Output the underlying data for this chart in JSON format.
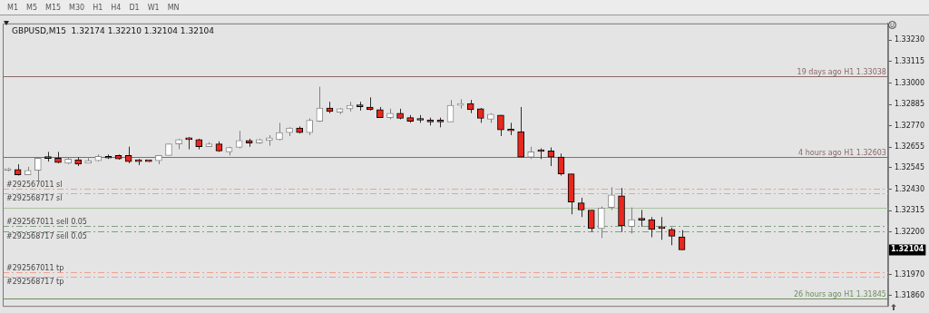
{
  "chart_data": {
    "type": "candlestick",
    "title": "GBPUSD,M15  1.32174 1.32210 1.32104 1.32104",
    "categories": [
      null,
      null,
      null,
      null,
      null,
      null,
      null,
      null,
      null,
      null,
      null,
      null,
      null,
      null,
      null,
      null,
      null,
      null,
      null,
      null,
      null,
      null,
      null,
      null,
      null,
      null,
      null,
      null,
      null,
      null,
      null,
      null,
      null,
      null,
      null,
      null,
      null,
      null,
      null,
      null,
      null,
      null,
      null,
      null,
      null,
      null,
      null,
      null,
      null,
      null,
      null,
      null,
      null,
      null,
      null,
      null,
      null,
      null,
      null,
      null,
      null,
      null,
      null,
      null,
      null,
      null,
      null,
      null,
      null,
      null,
      null,
      null,
      null,
      null,
      null,
      null,
      null,
      null,
      null,
      null,
      null,
      null,
      null,
      null,
      null,
      null,
      null,
      null
    ],
    "ohlc": [
      [
        1.32531,
        1.32545,
        1.32526,
        1.32536
      ],
      [
        1.32536,
        1.32564,
        1.32503,
        1.32507
      ],
      [
        1.32507,
        1.3255,
        1.32507,
        1.32531
      ],
      [
        1.32531,
        1.32597,
        1.32469,
        1.32597
      ],
      [
        1.32599,
        1.3263,
        1.32578,
        1.32595
      ],
      [
        1.32597,
        1.3263,
        1.32569,
        1.32573
      ],
      [
        1.32569,
        1.32602,
        1.32564,
        1.32592
      ],
      [
        1.32588,
        1.32602,
        1.32554,
        1.32564
      ],
      [
        1.32569,
        1.32597,
        1.32569,
        1.32583
      ],
      [
        1.32583,
        1.32616,
        1.32578,
        1.32606
      ],
      [
        1.32602,
        1.32616,
        1.32592,
        1.32597
      ],
      [
        1.32611,
        1.32616,
        1.32588,
        1.32592
      ],
      [
        1.32611,
        1.32658,
        1.32569,
        1.32578
      ],
      [
        1.32578,
        1.32592,
        1.32559,
        1.32578
      ],
      [
        1.32578,
        1.32583,
        1.32576,
        1.32578
      ],
      [
        1.32583,
        1.32611,
        1.32564,
        1.32611
      ],
      [
        1.32611,
        1.32673,
        1.32611,
        1.32673
      ],
      [
        1.32673,
        1.32701,
        1.32644,
        1.32696
      ],
      [
        1.32696,
        1.3271,
        1.32644,
        1.32696
      ],
      [
        1.32696,
        1.32701,
        1.32644,
        1.32658
      ],
      [
        1.32658,
        1.32682,
        1.32658,
        1.32673
      ],
      [
        1.32673,
        1.32687,
        1.3263,
        1.32635
      ],
      [
        1.3263,
        1.32658,
        1.32611,
        1.32654
      ],
      [
        1.32654,
        1.32743,
        1.32649,
        1.32691
      ],
      [
        1.32691,
        1.32701,
        1.32658,
        1.32677
      ],
      [
        1.32677,
        1.32701,
        1.32673,
        1.32696
      ],
      [
        1.32691,
        1.3272,
        1.32663,
        1.32706
      ],
      [
        1.32696,
        1.32786,
        1.32691,
        1.32734
      ],
      [
        1.32734,
        1.32762,
        1.32715,
        1.32758
      ],
      [
        1.32758,
        1.32767,
        1.32729,
        1.32734
      ],
      [
        1.32734,
        1.3281,
        1.3272,
        1.328
      ],
      [
        1.32795,
        1.3298,
        1.32791,
        1.32866
      ],
      [
        1.32866,
        1.32899,
        1.32838,
        1.32847
      ],
      [
        1.32843,
        1.32866,
        1.32833,
        1.32862
      ],
      [
        1.32862,
        1.32899,
        1.32847,
        1.3288
      ],
      [
        1.32878,
        1.32899,
        1.32852,
        1.32873
      ],
      [
        1.32871,
        1.32923,
        1.32852,
        1.32857
      ],
      [
        1.32857,
        1.32871,
        1.32814,
        1.32814
      ],
      [
        1.32814,
        1.32862,
        1.32805,
        1.32838
      ],
      [
        1.32838,
        1.32862,
        1.32805,
        1.3281
      ],
      [
        1.32814,
        1.32828,
        1.32786,
        1.32795
      ],
      [
        1.328,
        1.32828,
        1.32786,
        1.328
      ],
      [
        1.328,
        1.32814,
        1.32772,
        1.32791
      ],
      [
        1.32793,
        1.32814,
        1.32762,
        1.32791
      ],
      [
        1.32791,
        1.32909,
        1.32791,
        1.3288
      ],
      [
        1.3288,
        1.32913,
        1.32862,
        1.3289
      ],
      [
        1.3289,
        1.32909,
        1.32838,
        1.32857
      ],
      [
        1.32862,
        1.32866,
        1.32786,
        1.3281
      ],
      [
        1.32805,
        1.32838,
        1.32786,
        1.32833
      ],
      [
        1.32828,
        1.32828,
        1.32715,
        1.32748
      ],
      [
        1.32746,
        1.32786,
        1.3272,
        1.32743
      ],
      [
        1.32739,
        1.32871,
        1.32602,
        1.32602
      ],
      [
        1.32602,
        1.32658,
        1.32592,
        1.3263
      ],
      [
        1.32635,
        1.32649,
        1.32592,
        1.32632
      ],
      [
        1.32635,
        1.32654,
        1.32554,
        1.32602
      ],
      [
        1.32602,
        1.32621,
        1.32503,
        1.32512
      ],
      [
        1.32512,
        1.32512,
        1.32295,
        1.32361
      ],
      [
        1.32356,
        1.32384,
        1.3228,
        1.32318
      ],
      [
        1.32318,
        1.32318,
        1.322,
        1.32219
      ],
      [
        1.32219,
        1.32337,
        1.32167,
        1.32328
      ],
      [
        1.32332,
        1.32441,
        1.32318,
        1.32399
      ],
      [
        1.32394,
        1.32436,
        1.322,
        1.32233
      ],
      [
        1.32229,
        1.32332,
        1.32191,
        1.32266
      ],
      [
        1.32266,
        1.32318,
        1.32229,
        1.32264
      ],
      [
        1.32266,
        1.3228,
        1.32172,
        1.32214
      ],
      [
        1.32219,
        1.3228,
        1.32158,
        1.32219
      ],
      [
        1.32214,
        1.32224,
        1.32129,
        1.32177
      ],
      [
        1.32174,
        1.3221,
        1.32104,
        1.32104
      ],
      null,
      null,
      null,
      null,
      null,
      null,
      null,
      null,
      null,
      null,
      null,
      null,
      null,
      null,
      null,
      null,
      null,
      null,
      null,
      null
    ],
    "ylim": [
      1.31803,
      1.3332
    ],
    "yticks": [
      {
        "value": 1.3186,
        "label": "1.31860"
      },
      {
        "value": 1.3197,
        "label": "1.31970"
      },
      {
        "value": 1.322,
        "label": "1.32200"
      },
      {
        "value": 1.32315,
        "label": "1.32315"
      },
      {
        "value": 1.3243,
        "label": "1.32430"
      },
      {
        "value": 1.32545,
        "label": "1.32545"
      },
      {
        "value": 1.32655,
        "label": "1.32655"
      },
      {
        "value": 1.3277,
        "label": "1.32770"
      },
      {
        "value": 1.32885,
        "label": "1.32885"
      },
      {
        "value": 1.33,
        "label": "1.33000"
      },
      {
        "value": 1.33115,
        "label": "1.33115"
      },
      {
        "value": 1.3323,
        "label": "1.33230"
      }
    ],
    "tick_labels": "y",
    "ref_lines": [
      {
        "axis": "y",
        "value": 1.33038,
        "label": "19 days ago H1 1.33038",
        "color": "#8a6a6a",
        "line_style": "solid"
      },
      {
        "axis": "y",
        "value": 1.32603,
        "label": "4 hours ago H1 1.32603",
        "color": "#8a6a6a",
        "line_style": "solid"
      },
      {
        "axis": "y",
        "value": 1.31845,
        "label": "26 hours ago H1 1.31845",
        "color": "#6f8f5f",
        "line_style": "solid"
      },
      {
        "axis": "y",
        "value": 1.32332,
        "color": "#a9c3a0",
        "line_style": "solid"
      },
      {
        "axis": "y",
        "value": 1.32432,
        "label": "#292567011 sl",
        "color": "#f0a090",
        "line_style": "dashed"
      },
      {
        "axis": "y",
        "value": 1.32408,
        "label": "#292568717 sl",
        "color": "#f0a090",
        "line_style": "dashed"
      },
      {
        "axis": "y",
        "value": 1.32233,
        "label": "#292567011 sell 0.05",
        "color": "#7fa07f",
        "line_style": "dashed"
      },
      {
        "axis": "y",
        "value": 1.32205,
        "label": "#292568717 sell 0.05",
        "color": "#7fa07f",
        "line_style": "dashed"
      },
      {
        "axis": "y",
        "value": 1.31983,
        "label": "#292567011 tp",
        "color": "#f0a090",
        "line_style": "dashed"
      },
      {
        "axis": "y",
        "value": 1.31959,
        "label": "#292568717 tp",
        "color": "#f0a090",
        "line_style": "dashed"
      }
    ],
    "annotations": [
      "M1",
      "M5",
      "M15",
      "M30",
      "H1",
      "H4",
      "D1",
      "W1",
      "MN",
      "1.32104"
    ]
  }
}
